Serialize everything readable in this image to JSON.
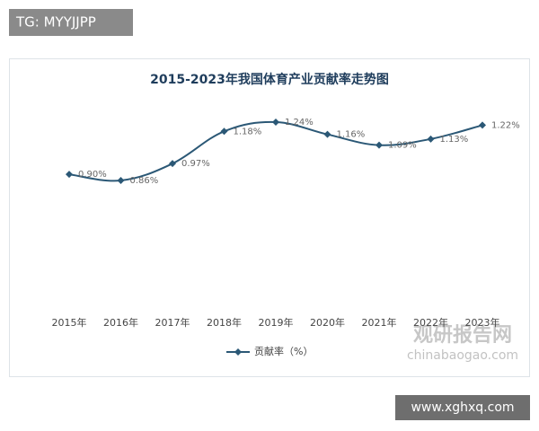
{
  "chart_data": {
    "type": "line",
    "title": "2015-2023年我国体育产业贡献率走势图",
    "categories": [
      "2015年",
      "2016年",
      "2017年",
      "2018年",
      "2019年",
      "2020年",
      "2021年",
      "2022年",
      "2023年"
    ],
    "series": [
      {
        "name": "贡献率（%）",
        "color": "#2b5876",
        "values": [
          0.9,
          0.86,
          0.97,
          1.18,
          1.24,
          1.16,
          1.09,
          1.13,
          1.22
        ],
        "value_labels": [
          "0.90%",
          "0.86%",
          "0.97%",
          "1.18%",
          "1.24%",
          "1.16%",
          "1.09%",
          "1.13%",
          "1.22%"
        ]
      }
    ],
    "legend": "bottom"
  },
  "overlay": {
    "tag": "TG: MYYJJPP",
    "watermark_name": "观研报告网",
    "watermark_url": "chinabaogao.com",
    "site": "www.xghxq.com"
  }
}
